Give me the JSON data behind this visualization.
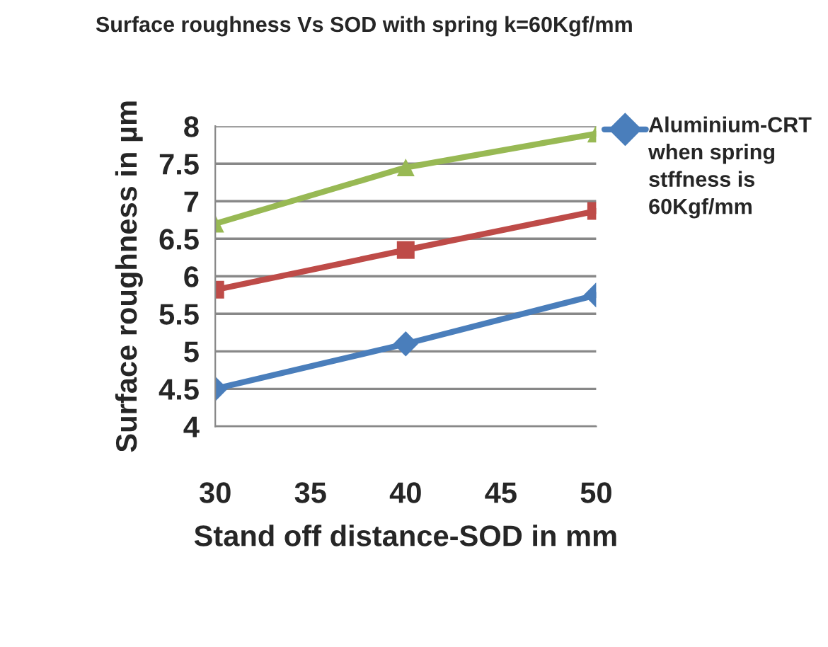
{
  "chart_data": {
    "type": "line",
    "title": "Surface roughness Vs SOD with spring k=60Kgf/mm",
    "xlabel": "Stand off distance-SOD in mm",
    "ylabel": "Surface roughness in µm",
    "x": [
      30,
      40,
      50
    ],
    "series": [
      {
        "name": "Aluminium-CRT when spring stffness is 60Kgf/mm",
        "color": "#4a7ebb",
        "marker": "diamond",
        "values": [
          4.5,
          5.1,
          5.75
        ]
      },
      {
        "color": "#be4b48",
        "marker": "square",
        "values": [
          5.82,
          6.35,
          6.87
        ]
      },
      {
        "color": "#98b954",
        "marker": "triangle",
        "values": [
          6.7,
          7.45,
          7.9
        ]
      }
    ],
    "xlim": [
      30,
      50
    ],
    "xticks": [
      30,
      35,
      40,
      45,
      50
    ],
    "ylim": [
      4,
      8
    ],
    "yticks": [
      4,
      4.5,
      5,
      5.5,
      6,
      6.5,
      7,
      7.5,
      8
    ],
    "grid": "y",
    "legend": "right",
    "line_style": "solid"
  }
}
